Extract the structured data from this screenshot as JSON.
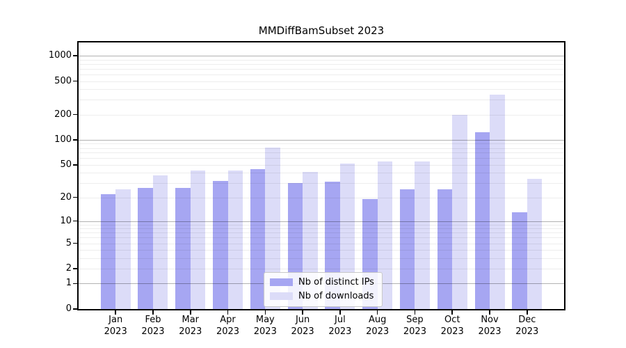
{
  "chart_data": {
    "type": "bar",
    "title": "MMDiffBamSubset 2023",
    "categories": [
      "Jan 2023",
      "Feb 2023",
      "Mar 2023",
      "Apr 2023",
      "May 2023",
      "Jun 2023",
      "Jul 2023",
      "Aug 2023",
      "Sep 2023",
      "Oct 2023",
      "Nov 2023",
      "Dec 2023"
    ],
    "series": [
      {
        "name": "Nb of distinct IPs",
        "color": "#a6a6f2",
        "values": [
          22,
          26,
          26,
          32,
          44,
          30,
          31,
          19,
          25,
          25,
          123,
          13
        ]
      },
      {
        "name": "Nb of downloads",
        "color": "#dcdcf8",
        "values": [
          25,
          37,
          43,
          43,
          81,
          41,
          52,
          55,
          55,
          199,
          348,
          34
        ]
      }
    ],
    "xlabel": "",
    "ylabel": "",
    "yscale": "log1p",
    "yticks": [
      0,
      1,
      2,
      5,
      10,
      20,
      50,
      100,
      200,
      500,
      1000
    ],
    "major_grid_values": [
      1,
      10,
      100,
      1000
    ],
    "ylim": [
      0,
      1435
    ],
    "grid": "on",
    "legend_position": "lower center inside plot",
    "colors": {
      "bar_distinct_ips": "#a6a6f2",
      "bar_downloads": "#dcdcf8",
      "axis": "#000000",
      "major_grid": "#b3b3b3",
      "minor_grid": "#ededed",
      "legend_border": "#c9c9c9"
    }
  }
}
